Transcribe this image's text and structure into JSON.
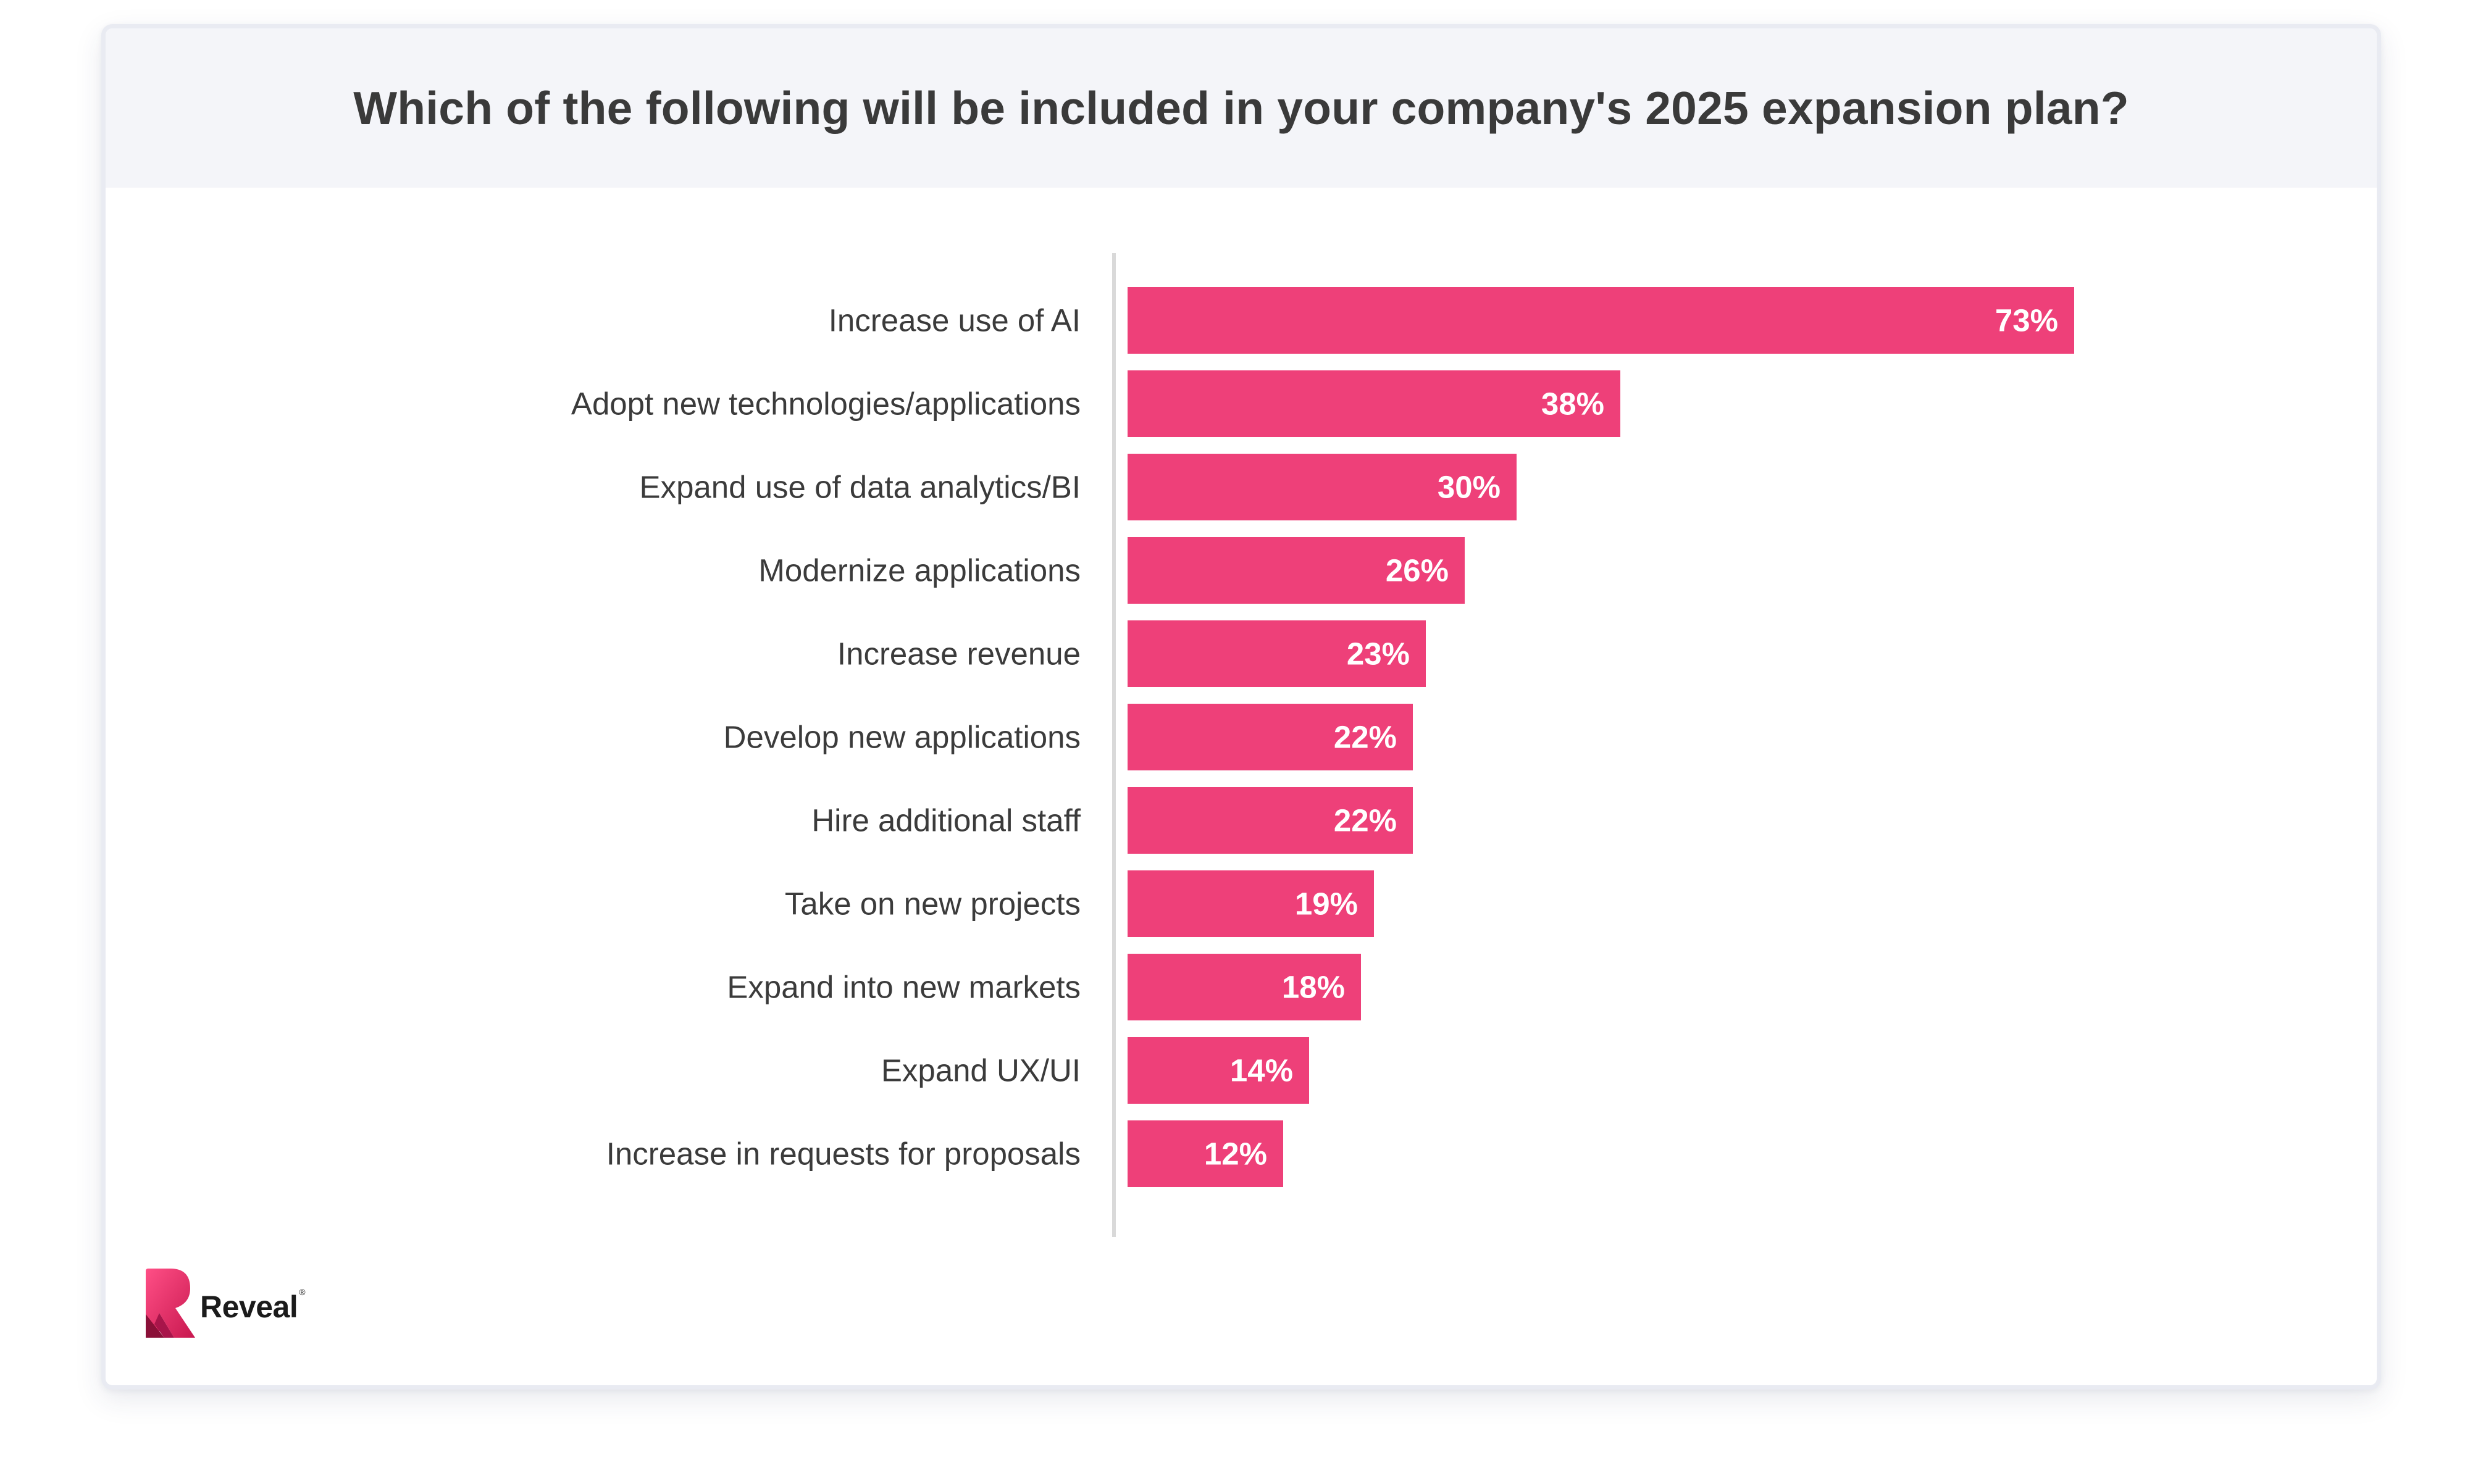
{
  "title": "Which of the following will be included in your company's 2025 expansion plan?",
  "brand": {
    "name": "Reveal",
    "registered_mark": "®"
  },
  "colors": {
    "bar": "#ee4079",
    "header_bg": "#f4f5f9",
    "axis_line": "#d9d9d9",
    "value_text": "#ffffff",
    "category_text": "#3b3b3b",
    "brand_primary": "#e8336d",
    "brand_dark": "#8a1038"
  },
  "chart_data": {
    "type": "bar",
    "orientation": "horizontal",
    "title": "Which of the following will be included in your company's 2025 expansion plan?",
    "categories": [
      "Increase use of AI",
      "Adopt new technologies/applications",
      "Expand use of data analytics/BI",
      "Modernize applications",
      "Increase revenue",
      "Develop new applications",
      "Hire additional staff",
      "Take on new projects",
      "Expand into new markets",
      "Expand UX/UI",
      "Increase in requests for proposals"
    ],
    "values": [
      73,
      38,
      30,
      26,
      23,
      22,
      22,
      19,
      18,
      14,
      12
    ],
    "value_labels": [
      "73%",
      "38%",
      "30%",
      "26%",
      "23%",
      "22%",
      "22%",
      "19%",
      "18%",
      "14%",
      "12%"
    ],
    "unit": "%",
    "xlabel": "",
    "ylabel": "",
    "xlim": [
      0,
      100
    ],
    "grid": false,
    "legend": "none"
  }
}
